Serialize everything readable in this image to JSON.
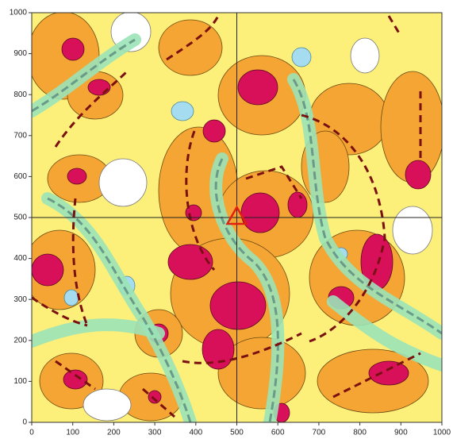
{
  "chart_data": {
    "type": "contour",
    "xlim": [
      0,
      1000
    ],
    "ylim": [
      0,
      1000
    ],
    "xticks": [
      0,
      100,
      200,
      300,
      400,
      500,
      600,
      700,
      800,
      900,
      1000
    ],
    "yticks": [
      0,
      100,
      200,
      300,
      400,
      500,
      600,
      700,
      800,
      900,
      1000
    ],
    "marker": {
      "x": 500,
      "y": 500,
      "color": "#e02010"
    }
  }
}
